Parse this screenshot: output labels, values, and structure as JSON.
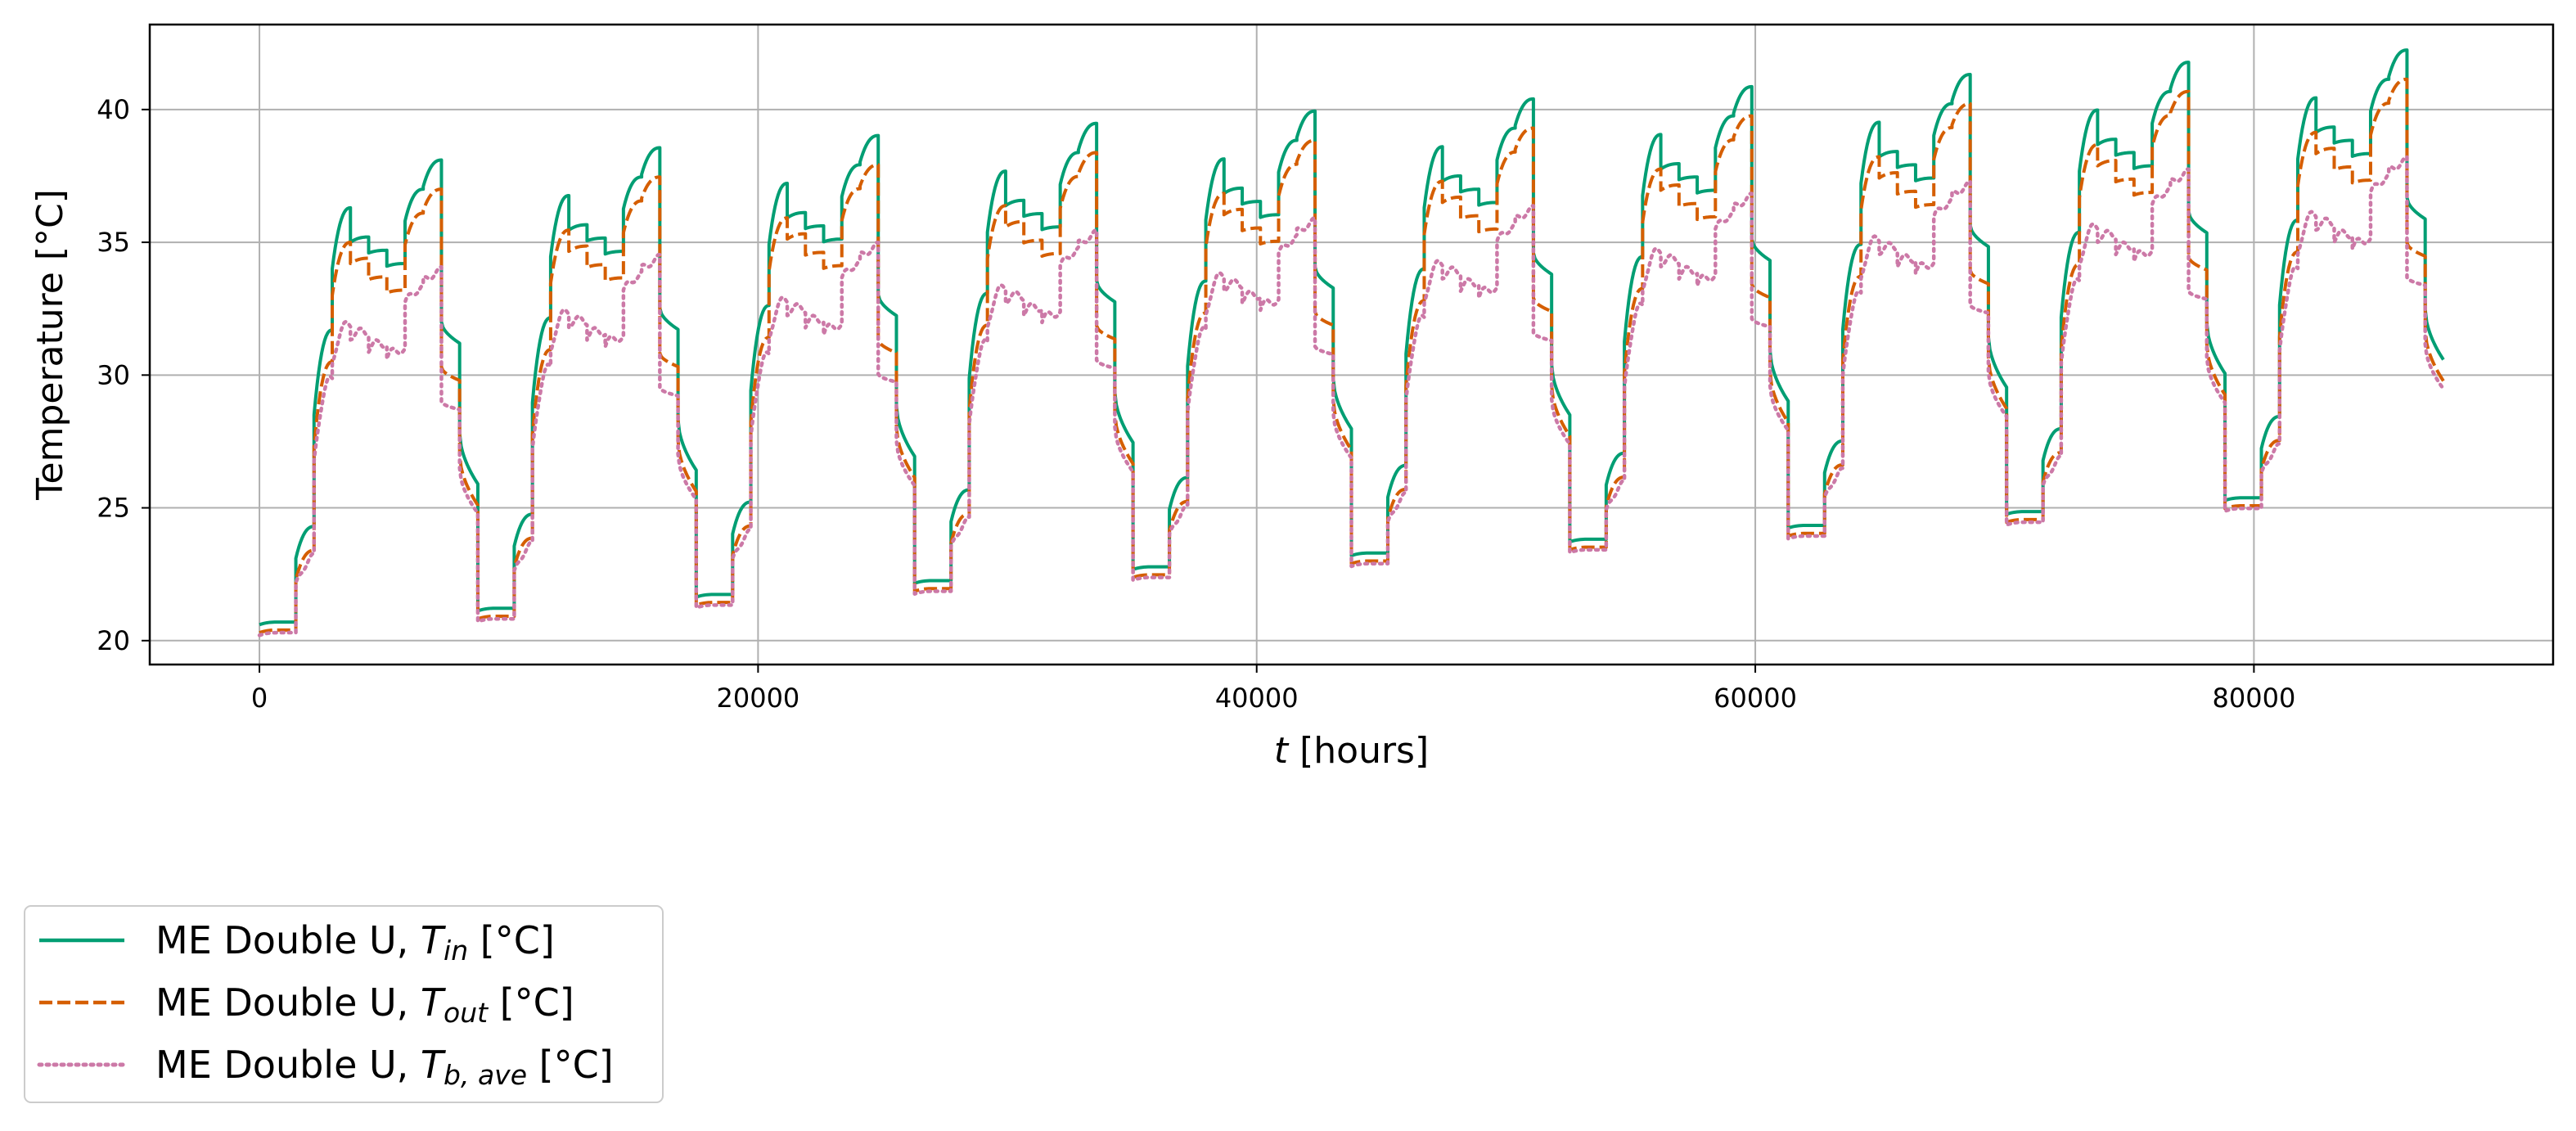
{
  "chart_data": {
    "type": "line",
    "title": "",
    "xlabel": {
      "var": "t",
      "unit": "[hours]"
    },
    "ylabel": "Temperature [°C]",
    "xlim": [
      -4400,
      92000
    ],
    "ylim": [
      19.1,
      43.2
    ],
    "x_ticks": [
      0,
      20000,
      40000,
      60000,
      80000
    ],
    "y_ticks": [
      20,
      25,
      30,
      35,
      40
    ],
    "grid": true,
    "legend_position": "below-left",
    "colors": {
      "t_in": "#009e73",
      "t_out": "#d55e00",
      "t_b_ave": "#cc79a7",
      "grid": "#b0b0b0",
      "frame": "#000000"
    },
    "series": [
      {
        "key": "t_in",
        "name_prefix": "ME Double U, ",
        "symbol": "T",
        "subscript": "in",
        "unit": " [°C]",
        "style": "solid"
      },
      {
        "key": "t_out",
        "name_prefix": "ME Double U, ",
        "symbol": "T",
        "subscript": "out",
        "unit": " [°C]",
        "style": "dashed"
      },
      {
        "key": "t_b_ave",
        "name_prefix": "ME Double U, ",
        "symbol": "T",
        "subscript": "b, ave",
        "unit": " [°C]",
        "style": "dotted"
      }
    ],
    "period_hours": 8760,
    "years": 10,
    "annual_profile": {
      "segments": [
        {
          "start": 0,
          "end": 730,
          "T_in": [
            20.6,
            20.7
          ],
          "T_out": [
            20.3,
            20.4
          ],
          "T_b_ave": [
            20.2,
            20.3
          ]
        },
        {
          "start": 730,
          "end": 1460,
          "T_in": [
            20.7,
            20.7
          ],
          "T_out": [
            20.4,
            20.4
          ],
          "T_b_ave": [
            20.3,
            20.3
          ]
        },
        {
          "start": 1460,
          "end": 2190,
          "T_in": [
            23.1,
            24.3
          ],
          "T_out": [
            22.3,
            23.4
          ],
          "T_b_ave": [
            22.0,
            23.1
          ]
        },
        {
          "start": 2190,
          "end": 2920,
          "T_in": [
            28.5,
            31.7
          ],
          "T_out": [
            27.3,
            30.5
          ],
          "T_b_ave": [
            26.7,
            29.8
          ]
        },
        {
          "start": 2920,
          "end": 3650,
          "T_in": [
            34.0,
            36.3
          ],
          "T_out": [
            33.0,
            35.0
          ],
          "T_b_ave": [
            30.5,
            31.9
          ]
        },
        {
          "start": 3650,
          "end": 4380,
          "T_in": [
            35.0,
            35.2
          ],
          "T_out": [
            34.2,
            34.4
          ],
          "T_b_ave": [
            31.5,
            31.6
          ]
        },
        {
          "start": 4380,
          "end": 5110,
          "T_in": [
            34.6,
            34.7
          ],
          "T_out": [
            33.6,
            33.7
          ],
          "T_b_ave": [
            31.0,
            31.2
          ]
        },
        {
          "start": 5110,
          "end": 5840,
          "T_in": [
            34.1,
            34.2
          ],
          "T_out": [
            33.1,
            33.2
          ],
          "T_b_ave": [
            30.6,
            31.0
          ]
        },
        {
          "start": 5840,
          "end": 6570,
          "T_in": [
            35.8,
            37.0
          ],
          "T_out": [
            34.9,
            36.1
          ],
          "T_b_ave": [
            32.6,
            33.3
          ]
        },
        {
          "start": 6570,
          "end": 7300,
          "T_in": [
            37.1,
            38.1
          ],
          "T_out": [
            36.2,
            37.0
          ],
          "T_b_ave": [
            33.5,
            33.9
          ]
        },
        {
          "start": 7300,
          "end": 8030,
          "T_in": [
            32.0,
            31.2
          ],
          "T_out": [
            30.3,
            29.8
          ],
          "T_b_ave": [
            29.0,
            28.7
          ]
        },
        {
          "start": 8030,
          "end": 8760,
          "T_in": [
            27.8,
            25.9
          ],
          "T_out": [
            27.0,
            25.1
          ],
          "T_b_ave": [
            26.5,
            24.8
          ]
        }
      ],
      "yearly_increment": {
        "summer": 0.46,
        "winter": 0.52
      }
    }
  }
}
